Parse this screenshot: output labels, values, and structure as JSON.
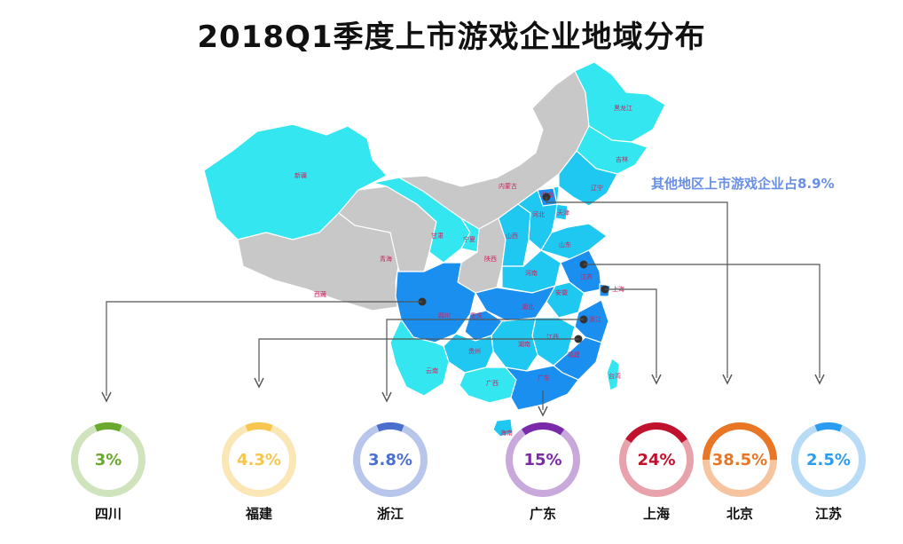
{
  "title": "2018Q1季度上市游戏企业地域分布",
  "annotation": "其他地区上市游戏企业占8.9%",
  "colors": {
    "grey": "#c8c8c8",
    "light": "#33e6f0",
    "mid": "#1ec8f0",
    "dark": "#1a8ff0",
    "connector": "#555555"
  },
  "map_labels": [
    "黑龙江",
    "吉林",
    "辽宁",
    "内蒙古",
    "新疆",
    "北京",
    "天津",
    "河北",
    "山西",
    "山东",
    "宁夏",
    "甘肃",
    "陕西",
    "青海",
    "西藏",
    "河南",
    "江苏",
    "上海",
    "安徽",
    "湖北",
    "四川",
    "重庆",
    "浙江",
    "湖南",
    "江西",
    "福建",
    "贵州",
    "云南",
    "广西",
    "广东",
    "台湾",
    "海南"
  ],
  "chart_data": {
    "type": "donut",
    "title": "2018Q1季度上市游戏企业地域分布",
    "other_share": 8.9,
    "regions": [
      {
        "name": "四川",
        "label": "3%",
        "value": 3,
        "color": "#6aa82e",
        "track": "#cfe3bd"
      },
      {
        "name": "福建",
        "label": "4.3%",
        "value": 4.3,
        "color": "#f7c64f",
        "track": "#fbe6b5"
      },
      {
        "name": "浙江",
        "label": "3.8%",
        "value": 3.8,
        "color": "#4a6fce",
        "track": "#b7c6ea"
      },
      {
        "name": "广东",
        "label": "15%",
        "value": 15,
        "color": "#7a2aa8",
        "track": "#c9a8dc"
      },
      {
        "name": "上海",
        "label": "24%",
        "value": 24,
        "color": "#c0112d",
        "track": "#e8a2ab"
      },
      {
        "name": "北京",
        "label": "38.5%",
        "value": 38.5,
        "color": "#e97624",
        "track": "#f6c59f"
      },
      {
        "name": "江苏",
        "label": "2.5%",
        "value": 2.5,
        "color": "#2a9df0",
        "track": "#b9dcf6"
      }
    ]
  }
}
